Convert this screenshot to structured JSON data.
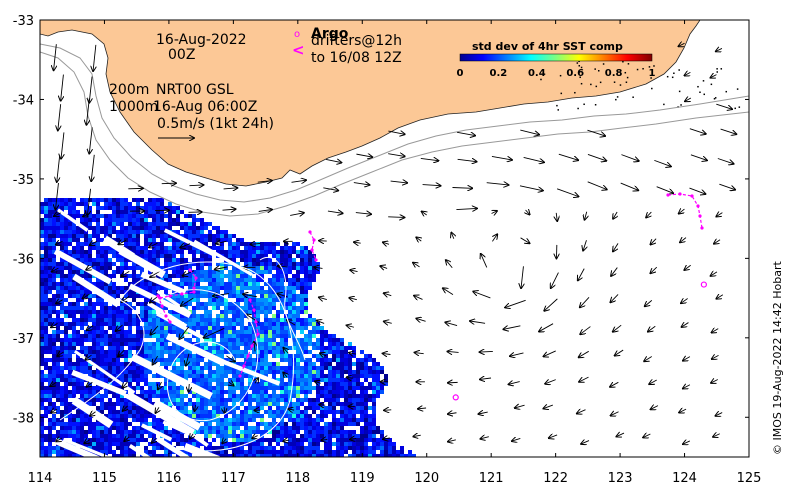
{
  "map": {
    "lon_range": [
      114,
      125
    ],
    "lat_range": [
      -38.5,
      -33
    ],
    "x_ticks": [
      "114",
      "115",
      "116",
      "117",
      "118",
      "119",
      "120",
      "121",
      "122",
      "123",
      "124",
      "125"
    ],
    "y_ticks": [
      "-33",
      "-34",
      "-35",
      "-36",
      "-37",
      "-38"
    ],
    "colors": {
      "land": "#fcc896",
      "ocean": "#ffffff",
      "coast_outline": "#222222",
      "isobath": "#999999",
      "arrow": "#000000",
      "argo": "#ff00ff"
    }
  },
  "annotations": {
    "date": "16-Aug-2022",
    "time": "00Z",
    "depth_200": "200m",
    "product": "NRT00 GSL",
    "depth_1000": "1000m",
    "product_time": "16-Aug 06:00Z",
    "scale": "0.5m/s (1kt 24h)"
  },
  "legend": {
    "argo_symbol": "o",
    "argo_label": "Argo",
    "drifters_symbol": "<",
    "drifters_label": "drifters@12h",
    "drifters_to": "to 16/08 12Z"
  },
  "colorbar": {
    "title": "std dev of 4hr SST comp",
    "ticks": [
      "0",
      "0.2",
      "0.4",
      "0.6",
      "0.8",
      "1"
    ],
    "range": [
      0,
      1
    ]
  },
  "credit": "© IMOS 19-Aug-2022 14:42 Hobart",
  "argo_floats": [
    {
      "lon": 120.45,
      "lat": -37.75
    },
    {
      "lon": 124.3,
      "lat": -36.33
    }
  ]
}
